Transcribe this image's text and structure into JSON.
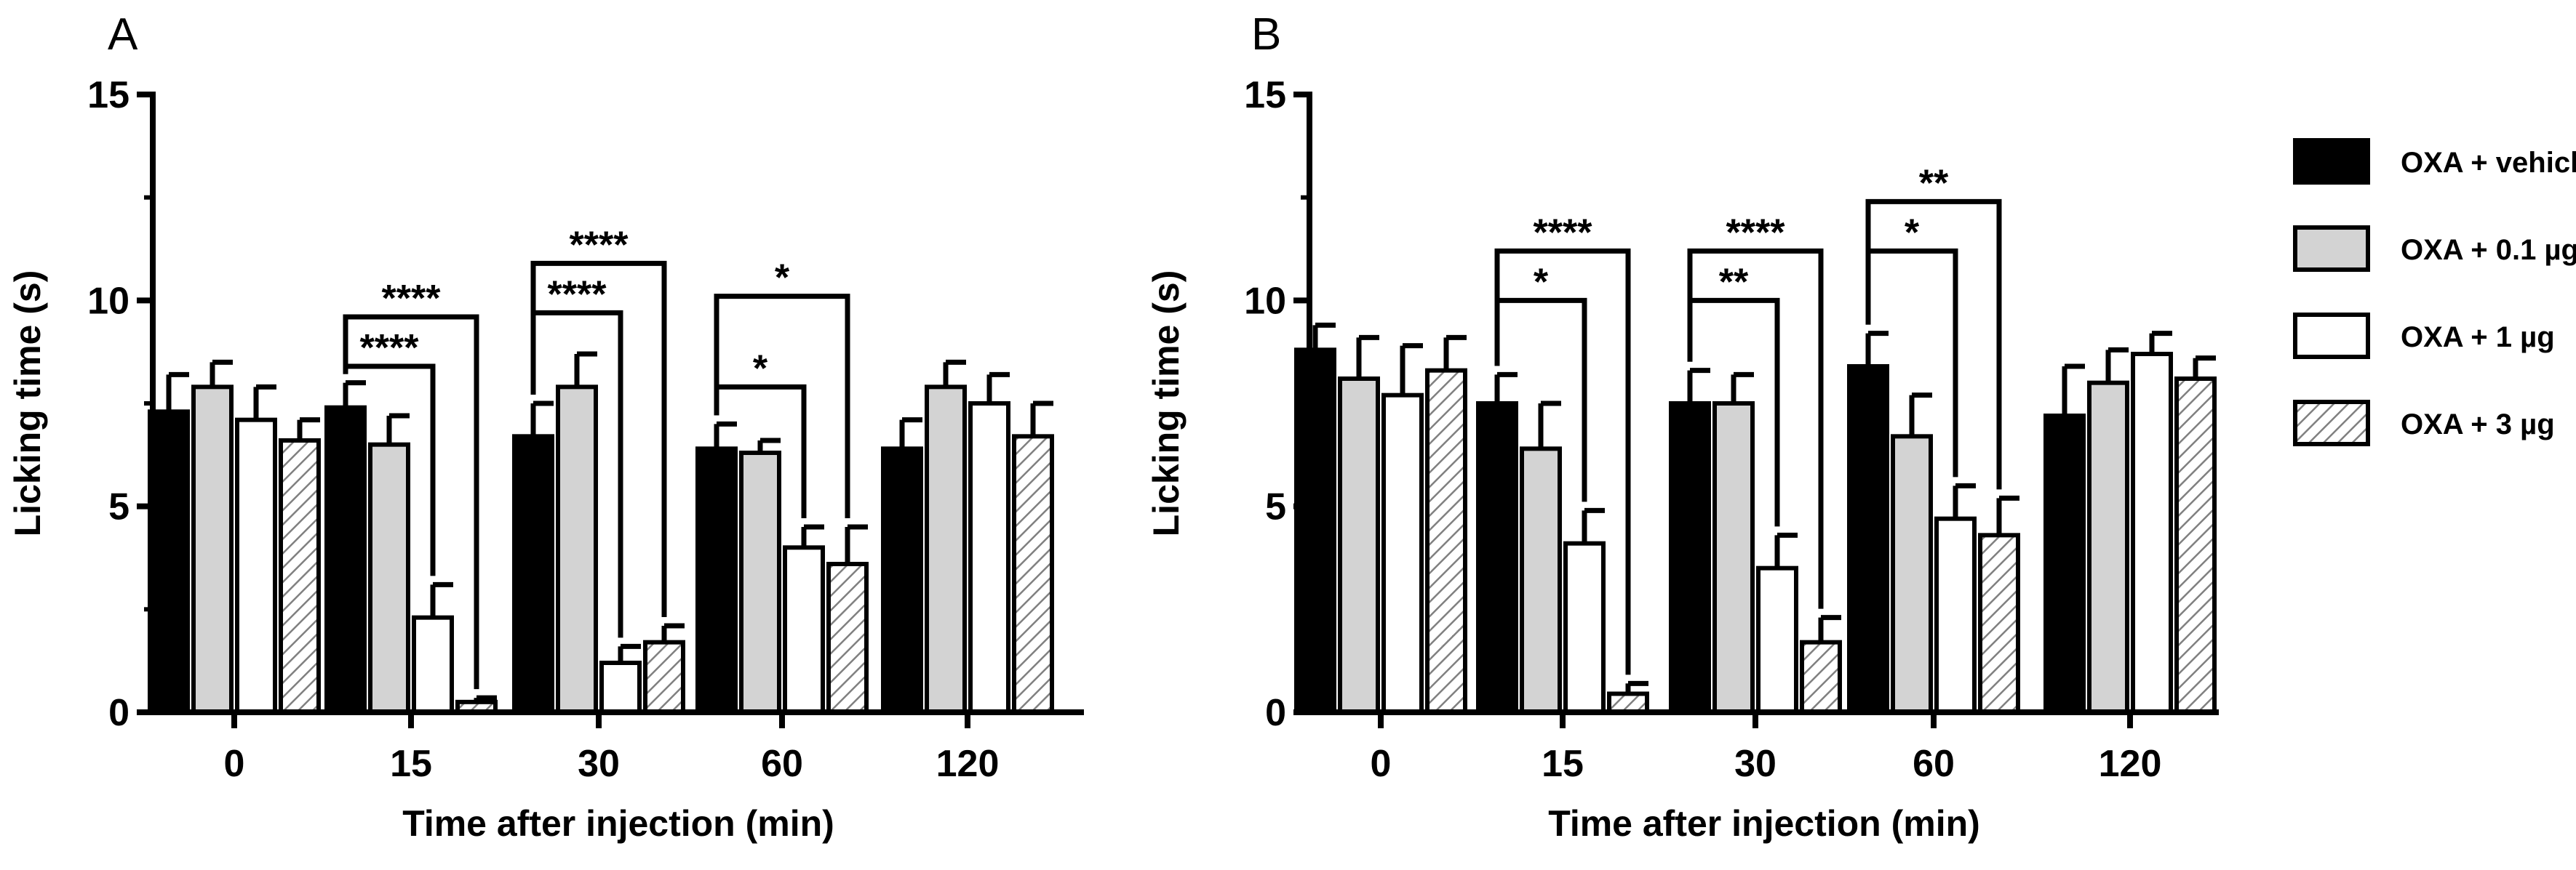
{
  "chart_data": [
    {
      "type": "bar",
      "panel": "A",
      "xlabel": "Time after injection (min)",
      "ylabel": "Licking time (s)",
      "ylim": [
        0,
        15
      ],
      "yticks": [
        "0",
        "5",
        "10",
        "15"
      ],
      "categories": [
        "0",
        "15",
        "30",
        "60",
        "120"
      ],
      "series": [
        {
          "name": "OXA + vehicle",
          "values": [
            7.3,
            7.4,
            6.7,
            6.4,
            6.4
          ],
          "errors": [
            0.9,
            0.6,
            0.8,
            0.6,
            0.7
          ]
        },
        {
          "name": "OXA + 0.1 µg",
          "values": [
            7.9,
            6.5,
            7.9,
            6.3,
            7.9
          ],
          "errors": [
            0.6,
            0.7,
            0.8,
            0.3,
            0.6
          ]
        },
        {
          "name": "OXA + 1 µg",
          "values": [
            7.1,
            2.3,
            1.2,
            4.0,
            7.5
          ],
          "errors": [
            0.8,
            0.8,
            0.4,
            0.5,
            0.7
          ]
        },
        {
          "name": "OXA + 3 µg",
          "values": [
            6.6,
            0.25,
            1.7,
            3.6,
            6.7
          ],
          "errors": [
            0.5,
            0.1,
            0.4,
            0.9,
            0.8
          ]
        }
      ],
      "annotations": [
        {
          "category": "15",
          "from_series": 0,
          "to_series": 2,
          "label": "****",
          "level": 8.4
        },
        {
          "category": "15",
          "from_series": 0,
          "to_series": 3,
          "label": "****",
          "level": 9.6
        },
        {
          "category": "30",
          "from_series": 0,
          "to_series": 2,
          "label": "****",
          "level": 9.7
        },
        {
          "category": "30",
          "from_series": 0,
          "to_series": 3,
          "label": "****",
          "level": 10.9
        },
        {
          "category": "60",
          "from_series": 0,
          "to_series": 2,
          "label": "*",
          "level": 7.9
        },
        {
          "category": "60",
          "from_series": 0,
          "to_series": 3,
          "label": "*",
          "level": 10.1
        }
      ]
    },
    {
      "type": "bar",
      "panel": "B",
      "xlabel": "Time after injection (min)",
      "ylabel": "Licking time (s)",
      "ylim": [
        0,
        15
      ],
      "yticks": [
        "0",
        "5",
        "10",
        "15"
      ],
      "categories": [
        "0",
        "15",
        "30",
        "60",
        "120"
      ],
      "series": [
        {
          "name": "OXA + vehicle",
          "values": [
            8.8,
            7.5,
            7.5,
            8.4,
            7.2
          ],
          "errors": [
            0.6,
            0.7,
            0.8,
            0.8,
            1.2
          ]
        },
        {
          "name": "OXA + 0.1 µg",
          "values": [
            8.1,
            6.4,
            7.5,
            6.7,
            8.0
          ],
          "errors": [
            1.0,
            1.1,
            0.7,
            1.0,
            0.8
          ]
        },
        {
          "name": "OXA + 1 µg",
          "values": [
            7.7,
            4.1,
            3.5,
            4.7,
            8.7
          ],
          "errors": [
            1.2,
            0.8,
            0.8,
            0.8,
            0.5
          ]
        },
        {
          "name": "OXA + 3 µg",
          "values": [
            8.3,
            0.45,
            1.7,
            4.3,
            8.1
          ],
          "errors": [
            0.8,
            0.25,
            0.6,
            0.9,
            0.5
          ]
        }
      ],
      "annotations": [
        {
          "category": "15",
          "from_series": 0,
          "to_series": 2,
          "label": "*",
          "level": 10.0
        },
        {
          "category": "15",
          "from_series": 0,
          "to_series": 3,
          "label": "****",
          "level": 11.2
        },
        {
          "category": "30",
          "from_series": 0,
          "to_series": 2,
          "label": "**",
          "level": 10.0
        },
        {
          "category": "30",
          "from_series": 0,
          "to_series": 3,
          "label": "****",
          "level": 11.2
        },
        {
          "category": "60",
          "from_series": 0,
          "to_series": 2,
          "label": "*",
          "level": 11.2
        },
        {
          "category": "60",
          "from_series": 0,
          "to_series": 3,
          "label": "**",
          "level": 12.4
        }
      ]
    }
  ],
  "legend": [
    {
      "label": "OXA + vehicle",
      "fill": "black"
    },
    {
      "label": "OXA + 0.1 µg",
      "fill": "grey"
    },
    {
      "label": "OXA + 1 µg",
      "fill": "white"
    },
    {
      "label": "OXA + 3 µg",
      "fill": "hatched"
    }
  ],
  "colors": {
    "vehicle": "#000000",
    "dose_0_1": "#d3d3d3",
    "dose_1": "#ffffff",
    "dose_3_line": "#808080"
  }
}
